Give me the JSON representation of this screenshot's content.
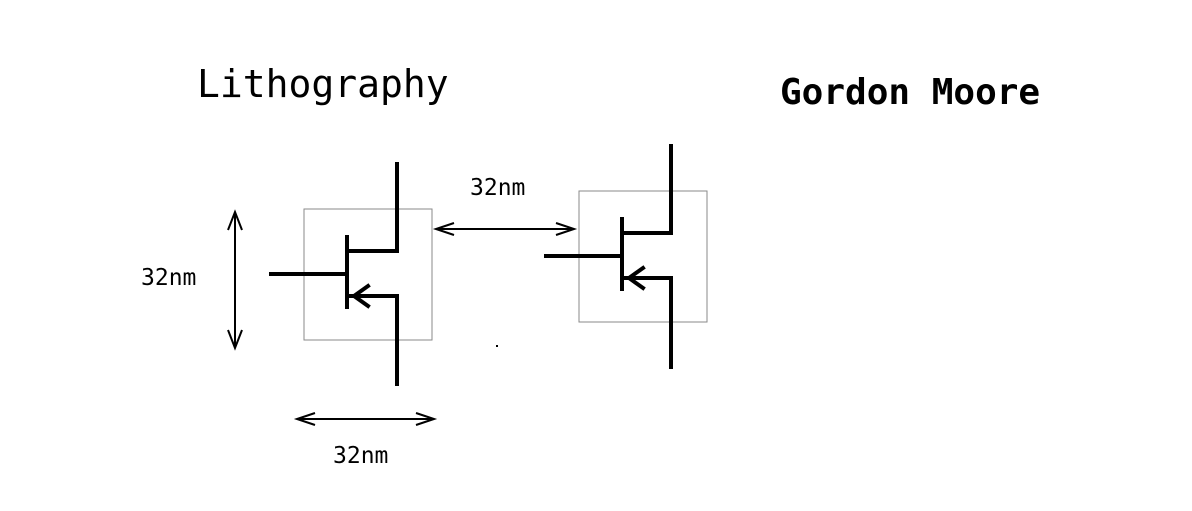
{
  "titles": {
    "left": "Lithography",
    "right": "Gordon Moore"
  },
  "dimensions": {
    "vertical": "32nm",
    "gap": "32nm",
    "bottom": "32nm"
  },
  "colors": {
    "ink": "#000000",
    "box_outline": "#8a8a8a",
    "background": "#ffffff"
  },
  "components": [
    {
      "type": "transistor-symbol"
    },
    {
      "type": "transistor-symbol"
    }
  ]
}
